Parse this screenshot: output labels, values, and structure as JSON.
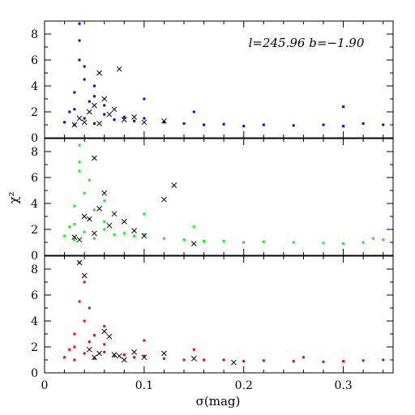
{
  "chart_data": {
    "type": "scatter",
    "annotation": "l=245.96 b=−1.90",
    "xlabel": "σ(mag)",
    "ylabel": "χ²",
    "xlim": [
      0,
      0.35
    ],
    "x_ticks": [
      "0",
      "0.1",
      "0.2",
      "0.3"
    ],
    "y_ticks": [
      "0",
      "2",
      "4",
      "6",
      "8"
    ],
    "panels": [
      {
        "name": "blue",
        "color": "#0000ff",
        "ylim": [
          0,
          9
        ],
        "points_x": [
          0.02,
          0.025,
          0.03,
          0.03,
          0.035,
          0.035,
          0.04,
          0.04,
          0.045,
          0.05,
          0.05,
          0.06,
          0.06,
          0.07,
          0.08,
          0.09,
          0.1,
          0.12,
          0.14,
          0.16,
          0.18,
          0.2,
          0.22,
          0.25,
          0.28,
          0.3,
          0.32,
          0.34,
          0.035,
          0.04,
          0.03,
          0.05,
          0.1,
          0.15,
          0.3
        ],
        "points_y": [
          1.2,
          2.0,
          1.0,
          3.5,
          6.0,
          8.8,
          1.5,
          4.5,
          2.8,
          1.1,
          3.2,
          1.8,
          2.5,
          1.4,
          1.6,
          1.3,
          1.5,
          1.2,
          1.1,
          1.0,
          1.05,
          0.9,
          1.0,
          0.95,
          1.0,
          0.9,
          1.1,
          1.0,
          7.5,
          5.5,
          2.2,
          4.0,
          3.0,
          2.0,
          2.4
        ],
        "cross_x": [
          0.03,
          0.035,
          0.04,
          0.045,
          0.05,
          0.055,
          0.06,
          0.065,
          0.07,
          0.08,
          0.09,
          0.1,
          0.12,
          0.055,
          0.075
        ],
        "cross_y": [
          1.0,
          1.5,
          1.2,
          2.0,
          2.5,
          1.1,
          3.0,
          1.8,
          2.2,
          1.4,
          1.6,
          1.2,
          1.3,
          5.0,
          5.3
        ]
      },
      {
        "name": "green",
        "color": "#00ff00",
        "ylim": [
          0,
          9
        ],
        "points_x": [
          0.02,
          0.025,
          0.03,
          0.03,
          0.035,
          0.035,
          0.04,
          0.04,
          0.045,
          0.05,
          0.05,
          0.06,
          0.06,
          0.07,
          0.08,
          0.09,
          0.1,
          0.12,
          0.14,
          0.16,
          0.18,
          0.2,
          0.22,
          0.25,
          0.28,
          0.3,
          0.32,
          0.34,
          0.035,
          0.045,
          0.03,
          0.06,
          0.1,
          0.15,
          0.33
        ],
        "points_y": [
          1.5,
          2.2,
          1.2,
          3.8,
          6.5,
          8.5,
          1.8,
          4.8,
          2.8,
          1.3,
          3.5,
          2.0,
          2.6,
          1.6,
          1.7,
          1.5,
          1.6,
          1.3,
          1.2,
          1.1,
          1.1,
          1.0,
          1.05,
          1.0,
          0.95,
          0.9,
          1.0,
          1.2,
          7.2,
          5.8,
          2.4,
          4.2,
          3.2,
          2.2,
          1.3
        ],
        "cross_x": [
          0.03,
          0.035,
          0.04,
          0.045,
          0.05,
          0.055,
          0.06,
          0.065,
          0.07,
          0.08,
          0.09,
          0.1,
          0.12,
          0.13,
          0.05,
          0.15
        ],
        "cross_y": [
          1.4,
          1.2,
          3.0,
          2.8,
          1.7,
          3.6,
          4.8,
          2.3,
          3.2,
          2.6,
          1.9,
          1.5,
          4.3,
          5.4,
          7.5,
          0.9
        ]
      },
      {
        "name": "red",
        "color": "#ff0000",
        "ylim": [
          0,
          9
        ],
        "points_x": [
          0.02,
          0.025,
          0.03,
          0.03,
          0.035,
          0.035,
          0.04,
          0.04,
          0.045,
          0.05,
          0.05,
          0.06,
          0.06,
          0.07,
          0.08,
          0.09,
          0.1,
          0.12,
          0.14,
          0.16,
          0.18,
          0.2,
          0.22,
          0.25,
          0.28,
          0.3,
          0.32,
          0.34,
          0.04,
          0.045,
          0.03,
          0.06,
          0.1,
          0.15,
          0.26
        ],
        "points_y": [
          1.2,
          1.8,
          1.0,
          3.0,
          5.5,
          8.5,
          1.5,
          4.0,
          2.4,
          1.1,
          2.9,
          1.6,
          2.2,
          1.3,
          1.4,
          1.2,
          1.3,
          1.1,
          1.0,
          1.0,
          1.0,
          0.9,
          0.95,
          0.9,
          0.85,
          0.9,
          0.95,
          1.0,
          7.0,
          5.0,
          2.0,
          3.6,
          2.5,
          1.8,
          1.2
        ],
        "cross_x": [
          0.035,
          0.04,
          0.045,
          0.05,
          0.055,
          0.06,
          0.065,
          0.07,
          0.075,
          0.08,
          0.09,
          0.1,
          0.12,
          0.15,
          0.19
        ],
        "cross_y": [
          8.5,
          7.5,
          1.8,
          1.2,
          1.5,
          3.2,
          2.8,
          1.4,
          1.3,
          1.0,
          1.6,
          1.2,
          1.5,
          1.1,
          0.8
        ]
      }
    ]
  }
}
